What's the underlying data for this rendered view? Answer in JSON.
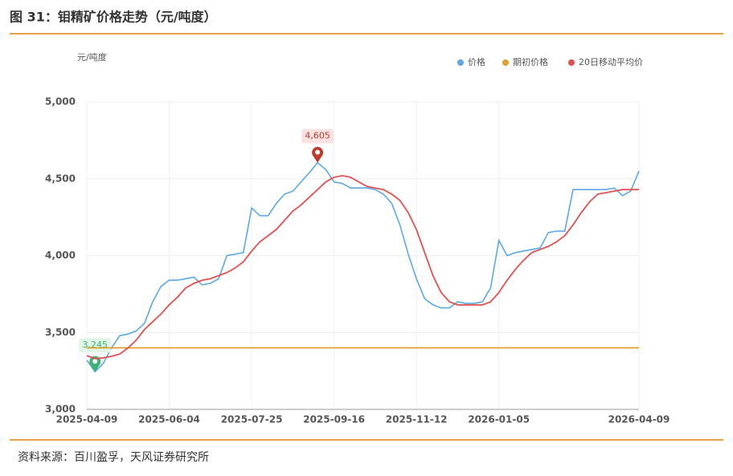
{
  "chart_data": {
    "type": "line",
    "title": "图 31：钼精矿价格走势（元/吨度）",
    "ylabel": "元/吨度",
    "categories": [
      "2025-04-09",
      null,
      null,
      null,
      null,
      null,
      null,
      null,
      null,
      null,
      "2025-06-04",
      null,
      null,
      null,
      null,
      null,
      null,
      null,
      null,
      null,
      "2025-07-25",
      null,
      null,
      null,
      null,
      null,
      null,
      null,
      null,
      null,
      "2025-09-16",
      null,
      null,
      null,
      null,
      null,
      null,
      null,
      null,
      null,
      "2025-11-12",
      null,
      null,
      null,
      null,
      null,
      null,
      null,
      null,
      null,
      "2026-01-05",
      null,
      null,
      null,
      null,
      null,
      null,
      null,
      null,
      null,
      null,
      null,
      null,
      null,
      null,
      null,
      null,
      "2026-04-09"
    ],
    "series": [
      {
        "name": "价格",
        "color": "#5aa9e6",
        "values": [
          3320,
          3245,
          3300,
          3400,
          3480,
          3490,
          3510,
          3560,
          3700,
          3800,
          3840,
          3840,
          3850,
          3860,
          3810,
          3820,
          3850,
          4000,
          4010,
          4020,
          4310,
          4260,
          4260,
          4340,
          4400,
          4420,
          4480,
          4540,
          4605,
          4560,
          4480,
          4470,
          4440,
          4440,
          4440,
          4430,
          4400,
          4340,
          4200,
          4010,
          3850,
          3720,
          3680,
          3660,
          3660,
          3700,
          3690,
          3690,
          3700,
          3790,
          4100,
          4000,
          4020,
          4030,
          4040,
          4050,
          4150,
          4160,
          4160,
          4430,
          4430,
          4430,
          4430,
          4430,
          4440,
          4390,
          4420,
          4550
        ],
        "value_labels": [
          null,
          "3,245",
          null,
          null,
          null,
          null,
          null,
          null,
          null,
          null,
          null,
          null,
          null,
          null,
          null,
          null,
          null,
          null,
          null,
          null,
          null,
          null,
          null,
          null,
          null,
          null,
          null,
          null,
          "4,605",
          null,
          null,
          null,
          null,
          null,
          null,
          null,
          null,
          null,
          null,
          null,
          null,
          null,
          null,
          null,
          null,
          null,
          null,
          null,
          null,
          null,
          null,
          null,
          null,
          null,
          null,
          null,
          null,
          null,
          null,
          null,
          null,
          null,
          null,
          null,
          null,
          null,
          null,
          null
        ]
      },
      {
        "name": "期初价格",
        "color": "#e0a030",
        "values": [
          3400,
          3400,
          3400,
          3400,
          3400,
          3400,
          3400,
          3400,
          3400,
          3400,
          3400,
          3400,
          3400,
          3400,
          3400,
          3400,
          3400,
          3400,
          3400,
          3400,
          3400,
          3400,
          3400,
          3400,
          3400,
          3400,
          3400,
          3400,
          3400,
          3400,
          3400,
          3400,
          3400,
          3400,
          3400,
          3400,
          3400,
          3400,
          3400,
          3400,
          3400,
          3400,
          3400,
          3400,
          3400,
          3400,
          3400,
          3400,
          3400,
          3400,
          3400,
          3400,
          3400,
          3400,
          3400,
          3400,
          3400,
          3400,
          3400,
          3400,
          3400,
          3400,
          3400,
          3400,
          3400,
          3400,
          3400,
          3400
        ]
      },
      {
        "name": "20日移动平均价",
        "color": "#e05050",
        "values": [
          3350,
          3330,
          3335,
          3345,
          3360,
          3400,
          3450,
          3520,
          3570,
          3620,
          3680,
          3730,
          3790,
          3820,
          3840,
          3850,
          3870,
          3890,
          3920,
          3960,
          4030,
          4090,
          4130,
          4170,
          4230,
          4290,
          4330,
          4380,
          4430,
          4480,
          4510,
          4520,
          4510,
          4480,
          4450,
          4440,
          4430,
          4400,
          4360,
          4280,
          4170,
          4020,
          3870,
          3760,
          3700,
          3680,
          3680,
          3680,
          3680,
          3700,
          3760,
          3840,
          3910,
          3970,
          4020,
          4040,
          4060,
          4090,
          4130,
          4200,
          4280,
          4350,
          4400,
          4410,
          4420,
          4430,
          4430,
          4430
        ]
      }
    ],
    "ylim": [
      3000,
      5000
    ],
    "yticks": [
      {
        "value": 3000,
        "label": "3,000"
      },
      {
        "value": 3500,
        "label": "3,500"
      },
      {
        "value": 4000,
        "label": "4,000"
      },
      {
        "value": 4500,
        "label": "4,500"
      },
      {
        "value": 5000,
        "label": "5,000"
      }
    ],
    "grid": true,
    "legend": "top-right"
  },
  "source": "资料来源：百川盈孚，天风证券研究所"
}
